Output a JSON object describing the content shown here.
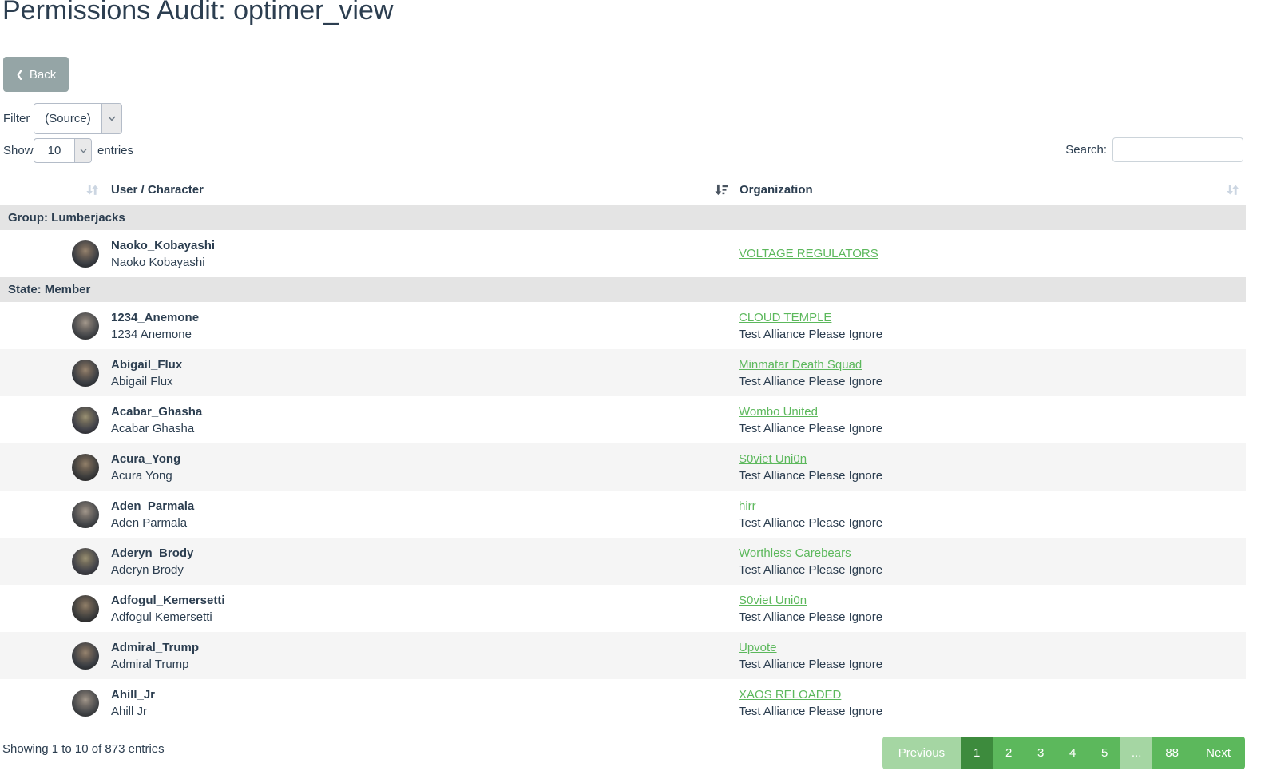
{
  "page": {
    "title": "Permissions Audit: optimer_view"
  },
  "toolbar": {
    "back_label": "Back",
    "filter_label": "Filter",
    "filter_value": "(Source)",
    "show_label": "Show",
    "show_value": "10",
    "entries_label": "entries",
    "search_label": "Search:",
    "search_value": ""
  },
  "table": {
    "columns": {
      "user": "User / Character",
      "organization": "Organization"
    },
    "sort": {
      "user": "unsorted",
      "organization": "descending",
      "extra": "unsorted"
    },
    "groups": [
      {
        "label": "Group: Lumberjacks",
        "rows": [
          {
            "username": "Naoko_Kobayashi",
            "character": "Naoko Kobayashi",
            "corporation": "VOLTAGE REGULATORS",
            "alliance": ""
          }
        ]
      },
      {
        "label": "State: Member",
        "rows": [
          {
            "username": "1234_Anemone",
            "character": "1234 Anemone",
            "corporation": "CLOUD TEMPLE",
            "alliance": "Test Alliance Please Ignore"
          },
          {
            "username": "Abigail_Flux",
            "character": "Abigail Flux",
            "corporation": "Minmatar Death Squad",
            "alliance": "Test Alliance Please Ignore"
          },
          {
            "username": "Acabar_Ghasha",
            "character": "Acabar Ghasha",
            "corporation": "Wombo United",
            "alliance": "Test Alliance Please Ignore"
          },
          {
            "username": "Acura_Yong",
            "character": "Acura Yong",
            "corporation": "S0viet Uni0n",
            "alliance": "Test Alliance Please Ignore"
          },
          {
            "username": "Aden_Parmala",
            "character": "Aden Parmala",
            "corporation": "hirr",
            "alliance": "Test Alliance Please Ignore"
          },
          {
            "username": "Aderyn_Brody",
            "character": "Aderyn Brody",
            "corporation": "Worthless Carebears",
            "alliance": "Test Alliance Please Ignore"
          },
          {
            "username": "Adfogul_Kemersetti",
            "character": "Adfogul Kemersetti",
            "corporation": "S0viet Uni0n",
            "alliance": "Test Alliance Please Ignore"
          },
          {
            "username": "Admiral_Trump",
            "character": "Admiral Trump",
            "corporation": "Upvote",
            "alliance": "Test Alliance Please Ignore"
          },
          {
            "username": "Ahill_Jr",
            "character": "Ahill Jr",
            "corporation": "XAOS RELOADED",
            "alliance": "Test Alliance Please Ignore"
          }
        ]
      }
    ]
  },
  "footer": {
    "showing_text": "Showing 1 to 10 of 873 entries",
    "pagination": [
      {
        "label": "Previous",
        "state": "disabled",
        "kind": "prev"
      },
      {
        "label": "1",
        "state": "active",
        "kind": "page"
      },
      {
        "label": "2",
        "state": "normal",
        "kind": "page"
      },
      {
        "label": "3",
        "state": "normal",
        "kind": "page"
      },
      {
        "label": "4",
        "state": "normal",
        "kind": "page"
      },
      {
        "label": "5",
        "state": "normal",
        "kind": "page"
      },
      {
        "label": "...",
        "state": "disabled",
        "kind": "ellipsis"
      },
      {
        "label": "88",
        "state": "normal",
        "kind": "page-wide"
      },
      {
        "label": "Next",
        "state": "normal",
        "kind": "next"
      }
    ]
  },
  "icons": {
    "back_chevron": "chevron-left-icon",
    "unsorted": "sort-both-icon",
    "sorted_desc": "sort-amount-desc-icon",
    "select_arrow": "chevron-down-icon"
  },
  "colors": {
    "text": "#2c3e50",
    "back_button": "#95a5a6",
    "link_green": "#5cb85c",
    "pagination_normal": "#5cb85c",
    "pagination_active": "#3d8b3d",
    "pagination_disabled": "#a5d6a3",
    "group_row_bg": "#e4e4e4",
    "stripe_bg": "#f5f5f5"
  }
}
